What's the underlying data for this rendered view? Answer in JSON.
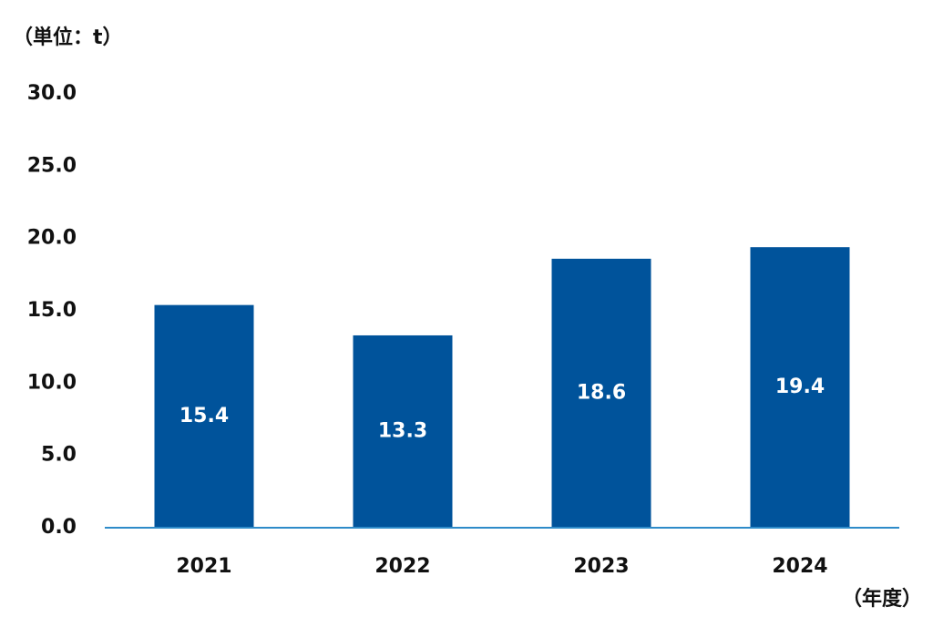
{
  "chart_data": {
    "type": "bar",
    "y_label": "（単位：t）",
    "x_label": "（年度）",
    "categories": [
      "2021",
      "2022",
      "2023",
      "2024"
    ],
    "values": [
      15.4,
      13.3,
      18.6,
      19.4
    ],
    "color": "#00539b",
    "axis_color": "#2e8bc9",
    "label_color": "#ffffff",
    "ylim": [
      0,
      30
    ],
    "yticks": [
      {
        "value": 0,
        "label": "0.0"
      },
      {
        "value": 5,
        "label": "5.0"
      },
      {
        "value": 10,
        "label": "10.0"
      },
      {
        "value": 15,
        "label": "15.0"
      },
      {
        "value": 20,
        "label": "20.0"
      },
      {
        "value": 25,
        "label": "25.0"
      },
      {
        "value": 30,
        "label": "30.0"
      }
    ],
    "grid": false
  }
}
